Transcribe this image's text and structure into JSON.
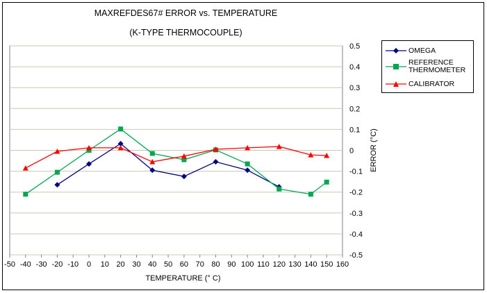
{
  "chart_data": {
    "type": "line",
    "title": "MAXREFDES67# ERROR vs. TEMPERATURE",
    "subtitle": "(K-TYPE THERMOCOUPLE)",
    "xlabel": "TEMPERATURE  (° C)",
    "ylabel": "ERROR (°C)",
    "xlim": [
      -50,
      160
    ],
    "ylim": [
      -0.5,
      0.5
    ],
    "x_ticks": [
      -50,
      -40,
      -30,
      -20,
      -10,
      0,
      10,
      20,
      30,
      40,
      50,
      60,
      70,
      80,
      90,
      100,
      110,
      120,
      130,
      140,
      150,
      160
    ],
    "y_ticks": [
      0.5,
      0.4,
      0.3,
      0.2,
      0.1,
      0,
      -0.1,
      -0.2,
      -0.3,
      -0.4,
      -0.5
    ],
    "grid": "horizontal",
    "legend_position": "right",
    "series": [
      {
        "name": "OMEGA",
        "color": "#000080",
        "marker": "diamond",
        "x": [
          -20,
          0,
          20,
          40,
          60,
          80,
          100,
          120
        ],
        "y": [
          -0.165,
          -0.065,
          0.032,
          -0.095,
          -0.125,
          -0.055,
          -0.095,
          -0.175
        ]
      },
      {
        "name": "REFERENCE\nTHERMOMETER",
        "color": "#00A651",
        "marker": "square",
        "x": [
          -40,
          -20,
          0,
          20,
          40,
          60,
          80,
          100,
          120,
          140,
          150
        ],
        "y": [
          -0.21,
          -0.105,
          0.0,
          0.102,
          -0.015,
          -0.045,
          0.002,
          -0.065,
          -0.185,
          -0.21,
          -0.152
        ]
      },
      {
        "name": "CALIBRATOR",
        "color": "#FF0000",
        "marker": "triangle",
        "x": [
          -40,
          -20,
          0,
          20,
          40,
          60,
          80,
          100,
          120,
          140,
          150
        ],
        "y": [
          -0.085,
          -0.005,
          0.012,
          0.012,
          -0.055,
          -0.028,
          0.005,
          0.012,
          0.018,
          -0.022,
          -0.025
        ]
      }
    ]
  }
}
